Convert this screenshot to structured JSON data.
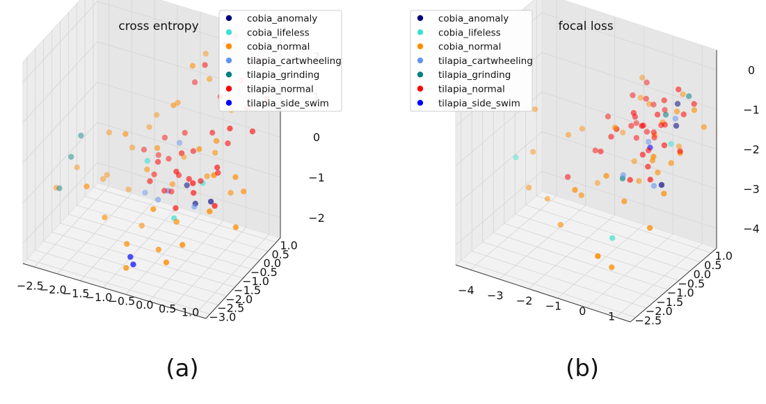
{
  "colors": {
    "cobia_anomaly": "#000080",
    "cobia_lifeless": "#40e0d0",
    "cobia_normal": "#ff8c00",
    "tilapia_cartwheeling": "#6495ed",
    "tilapia_grinding": "#008080",
    "tilapia_normal": "#ff0000",
    "tilapia_side_swim": "#0000ff"
  },
  "legend_entries": [
    "cobia_anomaly",
    "cobia_lifeless",
    "cobia_normal",
    "tilapia_cartwheeling",
    "tilapia_grinding",
    "tilapia_normal",
    "tilapia_side_swim"
  ],
  "captions": {
    "a": "(a)",
    "b": "(b)"
  },
  "chart_data": [
    {
      "type": "scatter",
      "projection": "3d",
      "title": "cross entropy",
      "legend_position": "top-right",
      "grid": true,
      "x_ticks": [
        "−2.5",
        "−2.0",
        "−1.5",
        "−1.0",
        "−0.5",
        "0.0",
        "0.5",
        "1.0"
      ],
      "y_ticks": [
        "−3.0",
        "−2.5",
        "−2.0",
        "−1.5",
        "−1.0",
        "−0.5",
        "0.0",
        "0.5",
        "1.0"
      ],
      "z_ticks": [
        "−2",
        "−1",
        "0",
        "1",
        "2"
      ],
      "xlim": [
        -2.7,
        1.3
      ],
      "ylim": [
        -3.1,
        1.1
      ],
      "zlim": [
        -2.6,
        2.2
      ],
      "series": [
        {
          "name": "cobia_anomaly",
          "points": [
            [
              -0.2,
              -0.3,
              -1.2
            ],
            [
              0.1,
              -0.6,
              -1.4
            ],
            [
              0.4,
              -0.5,
              -1.3
            ]
          ]
        },
        {
          "name": "cobia_lifeless",
          "points": [
            [
              0.3,
              -0.7,
              -0.8
            ],
            [
              -0.6,
              -1.5,
              -0.2
            ],
            [
              0.1,
              -1.8,
              -1.2
            ]
          ]
        },
        {
          "name": "cobia_normal",
          "points": [
            [
              -0.4,
              -0.6,
              -1.1
            ],
            [
              0.2,
              -0.2,
              -0.9
            ],
            [
              -0.8,
              -1.0,
              -0.7
            ],
            [
              0.6,
              0.1,
              -1.3
            ],
            [
              -1.2,
              -0.8,
              -0.4
            ],
            [
              0.0,
              -1.4,
              -1.5
            ],
            [
              -0.5,
              0.3,
              -0.9
            ],
            [
              0.9,
              -0.4,
              -0.6
            ],
            [
              -1.6,
              -1.2,
              -1.0
            ],
            [
              0.4,
              -2.1,
              -1.6
            ],
            [
              -0.9,
              -0.2,
              0.2
            ],
            [
              0.3,
              -0.9,
              0.1
            ],
            [
              -0.2,
              -1.9,
              -2.0
            ],
            [
              -1.4,
              -0.5,
              -1.6
            ],
            [
              0.7,
              -1.1,
              -0.3
            ],
            [
              -2.1,
              -1.6,
              -0.8
            ],
            [
              -0.7,
              -2.4,
              -1.8
            ],
            [
              0.5,
              0.4,
              0.5
            ],
            [
              -1.0,
              -1.7,
              0.4
            ],
            [
              0.1,
              0.2,
              1.2
            ],
            [
              -0.3,
              -0.8,
              0.9
            ],
            [
              -1.8,
              -0.9,
              -1.3
            ],
            [
              1.0,
              -0.2,
              -1.0
            ],
            [
              -0.6,
              -2.7,
              -2.2
            ],
            [
              0.2,
              -2.5,
              -1.9
            ],
            [
              -1.3,
              -2.1,
              -1.5
            ],
            [
              0.8,
              -1.6,
              -0.9
            ],
            [
              -0.1,
              0.5,
              1.6
            ],
            [
              -0.4,
              -0.3,
              0.7
            ],
            [
              -2.4,
              -2.0,
              -1.2
            ],
            [
              0.6,
              -0.7,
              0.3
            ],
            [
              -1.1,
              -0.1,
              -0.2
            ],
            [
              -0.8,
              -1.3,
              -1.9
            ],
            [
              0.3,
              0.0,
              -0.4
            ],
            [
              -1.5,
              -2.6,
              -0.6
            ],
            [
              0.0,
              -0.5,
              1.8
            ],
            [
              -0.5,
              -1.2,
              0.0
            ],
            [
              1.1,
              -0.9,
              -1.5
            ],
            [
              -1.9,
              -0.3,
              -0.5
            ],
            [
              -0.2,
              -2.2,
              -0.9
            ]
          ]
        },
        {
          "name": "tilapia_cartwheeling",
          "points": [
            [
              -0.6,
              -0.9,
              -1.4
            ],
            [
              -0.3,
              -1.1,
              -1.0
            ],
            [
              0.0,
              -0.4,
              -1.6
            ],
            [
              -1.0,
              -0.6,
              -1.5
            ],
            [
              -0.4,
              -0.2,
              -0.3
            ]
          ]
        },
        {
          "name": "tilapia_grinding",
          "points": [
            [
              -2.4,
              -0.6,
              -0.6
            ],
            [
              -2.5,
              -0.9,
              -1.0
            ],
            [
              -2.6,
              -1.3,
              -1.6
            ]
          ]
        },
        {
          "name": "tilapia_normal",
          "points": [
            [
              -0.3,
              -0.5,
              -0.9
            ],
            [
              0.1,
              -0.7,
              -1.1
            ],
            [
              -0.6,
              -0.3,
              -0.7
            ],
            [
              0.4,
              -0.1,
              -0.8
            ],
            [
              -0.2,
              -0.9,
              -0.6
            ],
            [
              0.0,
              0.2,
              1.5
            ],
            [
              0.3,
              0.6,
              1.9
            ],
            [
              0.8,
              0.5,
              0.6
            ],
            [
              1.0,
              0.3,
              0.2
            ],
            [
              0.6,
              0.7,
              1.1
            ],
            [
              -0.8,
              -0.6,
              -1.0
            ],
            [
              -0.1,
              -0.2,
              -0.4
            ],
            [
              0.2,
              -1.0,
              -0.7
            ],
            [
              -0.5,
              -0.8,
              -1.2
            ],
            [
              0.5,
              -0.4,
              -0.5
            ],
            [
              -0.9,
              -0.1,
              -0.8
            ],
            [
              -0.4,
              0.1,
              -0.2
            ],
            [
              0.7,
              -0.2,
              0.4
            ],
            [
              0.9,
              0.8,
              1.6
            ],
            [
              -0.7,
              -1.1,
              -0.9
            ],
            [
              0.1,
              -0.3,
              -1.0
            ],
            [
              -0.2,
              -0.6,
              -0.3
            ],
            [
              0.3,
              0.3,
              0.8
            ],
            [
              -1.1,
              -0.4,
              -0.6
            ],
            [
              0.6,
              -0.8,
              -1.2
            ],
            [
              -0.3,
              0.4,
              0.9
            ],
            [
              0.4,
              0.9,
              2.0
            ],
            [
              -0.6,
              -0.9,
              -0.5
            ],
            [
              0.2,
              0.1,
              0.0
            ],
            [
              -0.5,
              -0.4,
              -1.4
            ],
            [
              1.2,
              0.6,
              0.9
            ],
            [
              0.0,
              -0.7,
              -0.8
            ],
            [
              -0.8,
              0.0,
              -0.4
            ],
            [
              0.5,
              0.2,
              -0.2
            ],
            [
              -0.1,
              -1.2,
              -1.3
            ]
          ]
        },
        {
          "name": "tilapia_side_swim",
          "points": [
            [
              -0.7,
              -2.2,
              -2.2
            ],
            [
              -0.6,
              -2.3,
              -2.3
            ]
          ]
        }
      ]
    },
    {
      "type": "scatter",
      "projection": "3d",
      "title": "focal loss",
      "legend_position": "top-left",
      "grid": true,
      "x_ticks": [
        "−4",
        "−3",
        "−2",
        "−1",
        "0",
        "1"
      ],
      "y_ticks": [
        "−2.5",
        "−2.0",
        "−1.5",
        "−1.0",
        "−0.5",
        "0.0",
        "0.5",
        "1.0"
      ],
      "z_ticks": [
        "−4",
        "−3",
        "−2",
        "−1",
        "0"
      ],
      "xlim": [
        -4.6,
        1.2
      ],
      "ylim": [
        -2.7,
        1.2
      ],
      "zlim": [
        -4.3,
        0.3
      ],
      "series": [
        {
          "name": "cobia_anomaly",
          "points": [
            [
              0.3,
              0.6,
              -1.4
            ],
            [
              0.4,
              -0.2,
              -2.4
            ],
            [
              0.2,
              0.8,
              -1.0
            ]
          ]
        },
        {
          "name": "cobia_lifeless",
          "points": [
            [
              -4.0,
              -0.8,
              -2.5
            ],
            [
              -0.5,
              -1.2,
              -3.4
            ],
            [
              0.2,
              0.5,
              -1.8
            ]
          ]
        },
        {
          "name": "cobia_normal",
          "points": [
            [
              -0.2,
              0.3,
              -1.6
            ],
            [
              0.1,
              -0.2,
              -1.9
            ],
            [
              -0.6,
              0.6,
              -1.1
            ],
            [
              0.5,
              0.1,
              -2.0
            ],
            [
              -1.0,
              -0.4,
              -1.3
            ],
            [
              0.3,
              0.9,
              -0.8
            ],
            [
              -1.6,
              -1.1,
              -2.7
            ],
            [
              -2.4,
              -0.6,
              -1.7
            ],
            [
              -3.2,
              -1.3,
              -2.8
            ],
            [
              -3.8,
              -0.2,
              -1.6
            ],
            [
              0.7,
              -0.5,
              -2.4
            ],
            [
              -0.8,
              0.2,
              -2.3
            ],
            [
              -1.3,
              -1.8,
              -2.2
            ],
            [
              0.6,
              -1.0,
              -3.0
            ],
            [
              -0.3,
              -1.5,
              -3.9
            ],
            [
              0.0,
              0.4,
              -1.3
            ],
            [
              -2.0,
              -1.5,
              -3.3
            ],
            [
              -0.9,
              0.7,
              -0.6
            ],
            [
              0.4,
              0.5,
              -1.0
            ],
            [
              -1.8,
              -0.1,
              -2.9
            ],
            [
              1.0,
              0.9,
              -1.4
            ],
            [
              -0.4,
              -0.8,
              -2.7
            ],
            [
              -2.8,
              -1.0,
              -3.1
            ],
            [
              0.2,
              -0.1,
              -2.2
            ],
            [
              -1.1,
              0.9,
              -1.2
            ],
            [
              -0.1,
              -2.4,
              -3.2
            ],
            [
              -2.6,
              0.3,
              -2.0
            ],
            [
              0.8,
              0.1,
              -1.7
            ],
            [
              -0.7,
              -1.2,
              -2.0
            ],
            [
              0.5,
              -0.7,
              -1.5
            ],
            [
              -1.4,
              0.5,
              -1.9
            ],
            [
              0.9,
              0.6,
              -0.9
            ],
            [
              -0.5,
              0.0,
              -2.6
            ],
            [
              -3.5,
              -0.7,
              -2.3
            ],
            [
              0.1,
              1.0,
              -2.1
            ]
          ]
        },
        {
          "name": "tilapia_cartwheeling",
          "points": [
            [
              0.0,
              0.0,
              -2.6
            ],
            [
              -0.4,
              0.3,
              -1.8
            ],
            [
              0.2,
              0.7,
              -1.3
            ],
            [
              -0.8,
              -0.3,
              -2.4
            ]
          ]
        },
        {
          "name": "tilapia_grinding",
          "points": [
            [
              0.5,
              0.9,
              -0.8
            ],
            [
              -0.6,
              -0.6,
              -2.3
            ],
            [
              0.1,
              0.4,
              -1.1
            ]
          ]
        },
        {
          "name": "tilapia_normal",
          "points": [
            [
              -0.5,
              0.2,
              -1.4
            ],
            [
              -0.3,
              0.4,
              -1.6
            ],
            [
              -0.7,
              0.1,
              -1.2
            ],
            [
              -0.2,
              0.6,
              -1.5
            ],
            [
              -0.6,
              0.5,
              -1.7
            ],
            [
              -0.4,
              0.0,
              -1.3
            ],
            [
              -0.8,
              0.3,
              -1.8
            ],
            [
              -0.1,
              0.3,
              -1.1
            ],
            [
              -0.5,
              0.7,
              -1.9
            ],
            [
              -0.9,
              0.2,
              -1.5
            ],
            [
              0.0,
              0.5,
              -1.4
            ],
            [
              -0.3,
              -0.1,
              -1.9
            ],
            [
              -0.6,
              0.8,
              -1.2
            ],
            [
              -0.4,
              0.3,
              -2.0
            ],
            [
              -0.7,
              0.6,
              -1.0
            ],
            [
              -1.2,
              -0.3,
              -1.6
            ],
            [
              -1.6,
              0.1,
              -1.4
            ],
            [
              -2.2,
              -0.9,
              -2.5
            ],
            [
              0.3,
              0.7,
              -0.6
            ],
            [
              0.6,
              1.0,
              -1.0
            ],
            [
              -1.0,
              0.4,
              -0.9
            ],
            [
              -0.2,
              0.0,
              -2.2
            ],
            [
              0.2,
              0.2,
              -1.7
            ],
            [
              -1.4,
              -0.5,
              -1.9
            ],
            [
              0.4,
              0.8,
              -1.2
            ],
            [
              -0.5,
              -0.4,
              -2.4
            ],
            [
              -0.9,
              0.9,
              -0.8
            ],
            [
              -0.1,
              0.6,
              -0.9
            ],
            [
              -1.8,
              -0.2,
              -2.1
            ],
            [
              0.1,
              -0.3,
              -2.3
            ],
            [
              -0.6,
              -0.1,
              -1.0
            ],
            [
              -1.1,
              0.7,
              -1.7
            ],
            [
              0.5,
              0.5,
              -1.9
            ],
            [
              -0.3,
              0.9,
              -1.3
            ],
            [
              -0.8,
              -0.6,
              -1.2
            ]
          ]
        },
        {
          "name": "tilapia_side_swim",
          "points": [
            [
              -0.2,
              0.1,
              -1.8
            ]
          ]
        }
      ]
    }
  ]
}
